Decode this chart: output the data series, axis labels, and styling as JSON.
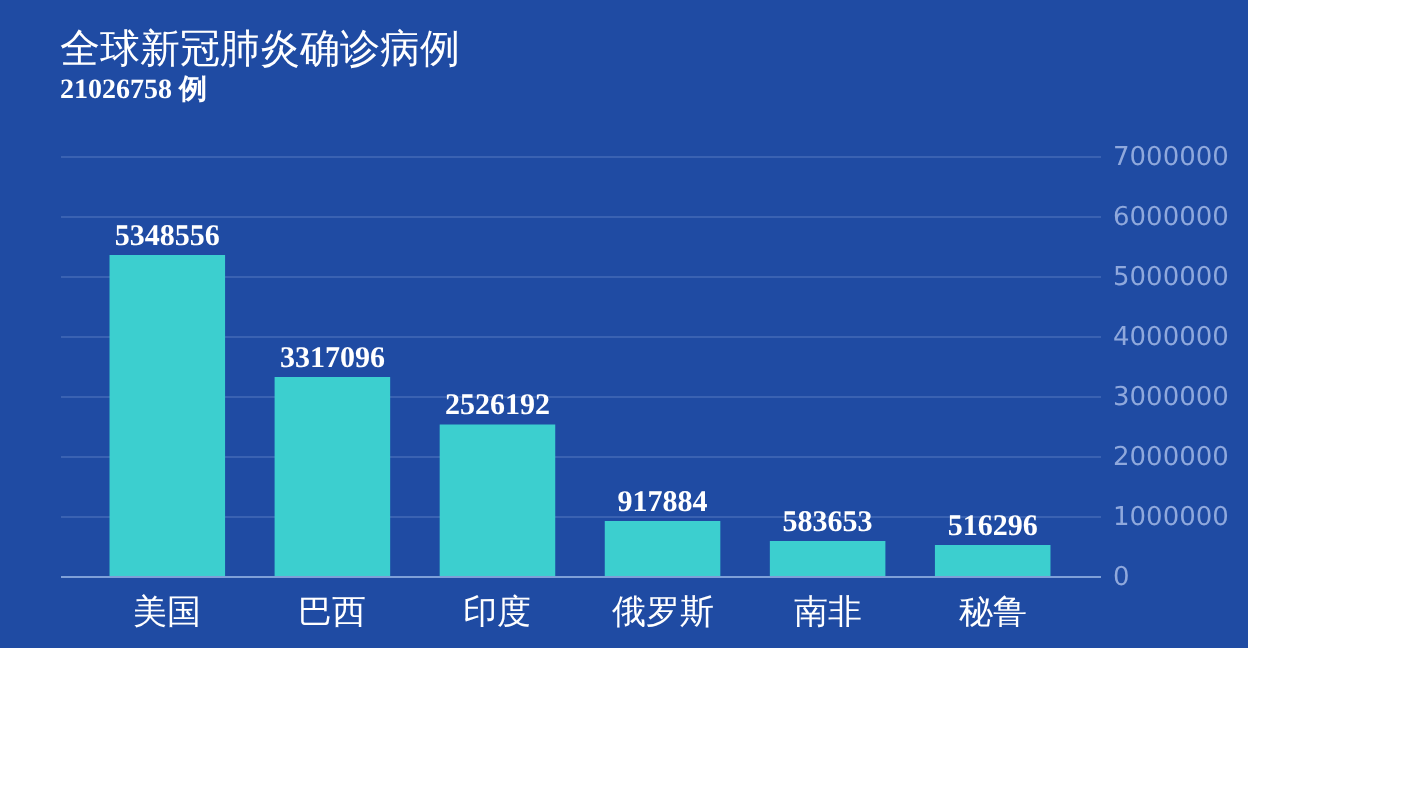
{
  "chart_data": {
    "type": "bar",
    "title": "全球新冠肺炎确诊病例",
    "subtitle": "21026758 例",
    "categories": [
      "美国",
      "巴西",
      "印度",
      "俄罗斯",
      "南非",
      "秘鲁"
    ],
    "values": [
      5348556,
      3317096,
      2526192,
      917884,
      583653,
      516296
    ],
    "color": "#3ccfcf",
    "ylim": [
      0,
      7000000
    ],
    "yticks": [
      0,
      1000000,
      2000000,
      3000000,
      4000000,
      5000000,
      6000000,
      7000000
    ],
    "grid": "y",
    "data_labels": true
  }
}
